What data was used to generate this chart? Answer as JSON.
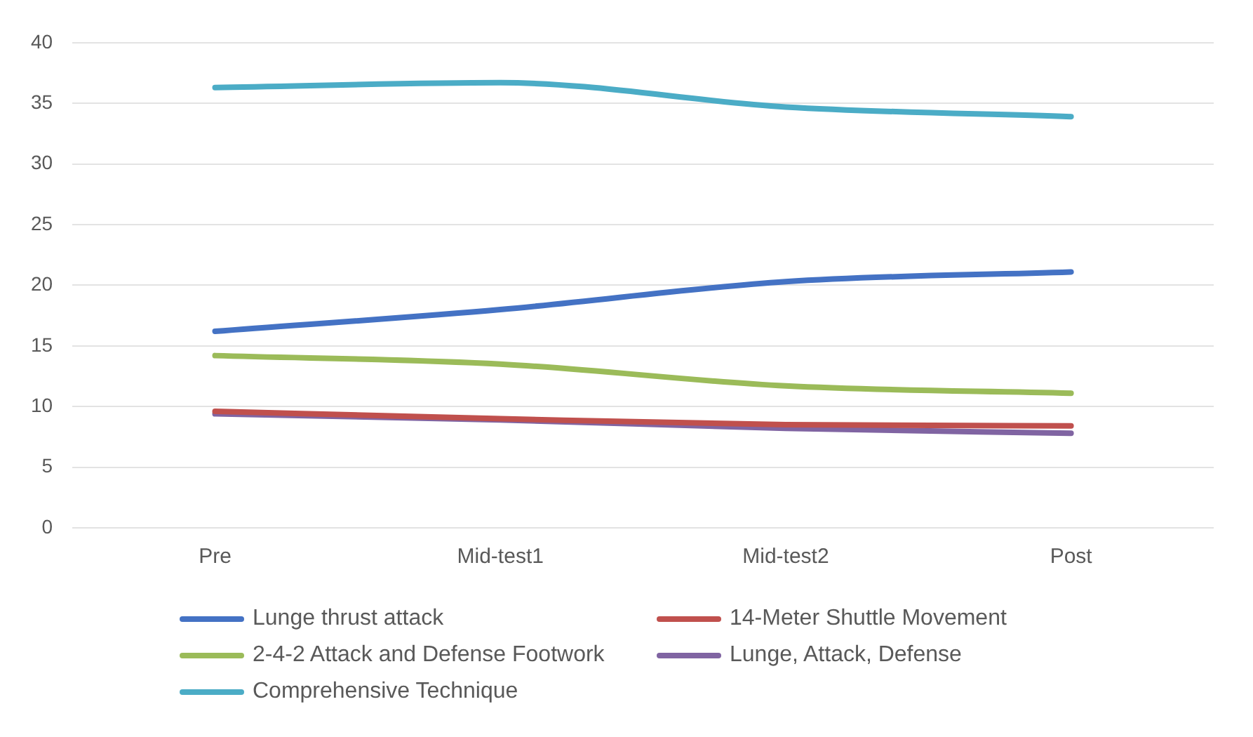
{
  "chart_data": {
    "type": "line",
    "categories": [
      "Pre",
      "Mid-test1",
      "Mid-test2",
      "Post"
    ],
    "series": [
      {
        "name": "Lunge thrust attack",
        "color": "#4472c4",
        "values": [
          16.2,
          18.0,
          20.3,
          21.1
        ]
      },
      {
        "name": "14-Meter Shuttle Movement",
        "color": "#c0504d",
        "values": [
          9.6,
          9.0,
          8.5,
          8.4
        ]
      },
      {
        "name": "2-4-2 Attack and Defense Footwork",
        "color": "#9bbb59",
        "values": [
          14.2,
          13.5,
          11.7,
          11.1
        ]
      },
      {
        "name": "Lunge, Attack, Defense",
        "color": "#8064a2",
        "values": [
          9.4,
          8.9,
          8.2,
          7.8
        ]
      },
      {
        "name": "Comprehensive Technique",
        "color": "#4bacc6",
        "values": [
          36.3,
          36.7,
          34.7,
          33.9
        ]
      }
    ],
    "ylim": [
      0,
      40
    ],
    "yticks": [
      0,
      5,
      10,
      15,
      20,
      25,
      30,
      35,
      40
    ],
    "grid": "y",
    "legend": "bottom",
    "marker": "none",
    "line_style": "solid"
  }
}
